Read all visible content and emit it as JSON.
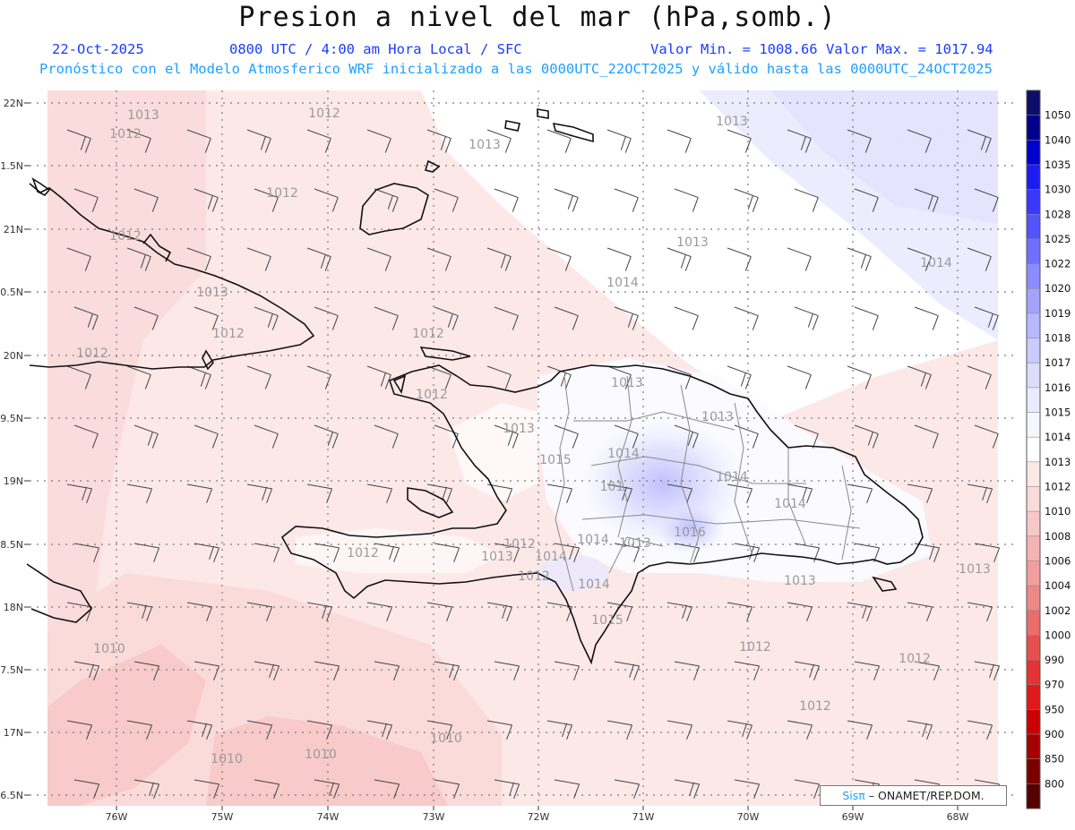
{
  "header": {
    "title": "Presion a nivel del mar (hPa,somb.)",
    "date": "22-Oct-2025",
    "time": "0800 UTC / 4:00 am Hora Local / SFC",
    "minmax": "Valor Min. = 1008.66  Valor Max. = 1017.94",
    "model_line": "Pronóstico con el Modelo Atmosferico WRF inicializado a las 0000UTC_22OCT2025 y válido hasta las  0000UTC_24OCT2025"
  },
  "map": {
    "lat_labels": [
      "22N",
      "1.5N",
      "21N",
      "0.5N",
      "20N",
      "9.5N",
      "19N",
      "8.5N",
      "18N",
      "7.5N",
      "17N",
      "6.5N"
    ],
    "lon_labels": [
      "76W",
      "75W",
      "74W",
      "73W",
      "72W",
      "71W",
      "70W",
      "69W",
      "68W"
    ],
    "isobar_labels": [
      "1013",
      "1012",
      "1013",
      "1013",
      "1014",
      "1012",
      "1012",
      "1013",
      "1014",
      "1012",
      "1013",
      "1012",
      "1012",
      "1012",
      "1013",
      "1012",
      "1013",
      "1013",
      "1014",
      "1015",
      "101",
      "1014",
      "1014",
      "1014",
      "1016",
      "1012",
      "1014",
      "1013",
      "1013",
      "1014",
      "1012",
      "1015",
      "1013",
      "1012",
      "1013",
      "1010",
      "1012",
      "1012",
      "1012",
      "1010",
      "1010",
      "1010"
    ],
    "colors": {
      "land_outline": "#111111",
      "province_outline": "#8a8a8a",
      "grid": "#7a7a7a",
      "isobar_label": "#9a9a9a"
    }
  },
  "colorbar": {
    "levels": [
      "1050",
      "1040",
      "1035",
      "1030",
      "1028",
      "1025",
      "1022",
      "1020",
      "1019",
      "1018",
      "1017",
      "1016",
      "1015",
      "1014",
      "1013",
      "1012",
      "1010",
      "1008",
      "1006",
      "1004",
      "1002",
      "1000",
      "990",
      "970",
      "950",
      "900",
      "850",
      "800"
    ],
    "colors": [
      "#0d0d6b",
      "#00008b",
      "#0000cd",
      "#1c1cf0",
      "#3838ff",
      "#5454ff",
      "#7070ff",
      "#8c8cff",
      "#a4a4ff",
      "#b8b8ff",
      "#cacaff",
      "#dcdcff",
      "#ebebff",
      "#f6f6ff",
      "#ffffff",
      "#fde8e8",
      "#fbdada",
      "#f8c8c8",
      "#f5b4b4",
      "#f29e9e",
      "#ee8888",
      "#ea6e6e",
      "#e65050",
      "#e23434",
      "#e01a1a",
      "#cc0000",
      "#a80000",
      "#7a0000",
      "#550000"
    ]
  },
  "credit": {
    "brand": "Sisπ",
    "org": "– ONAMET/REP.DOM."
  }
}
